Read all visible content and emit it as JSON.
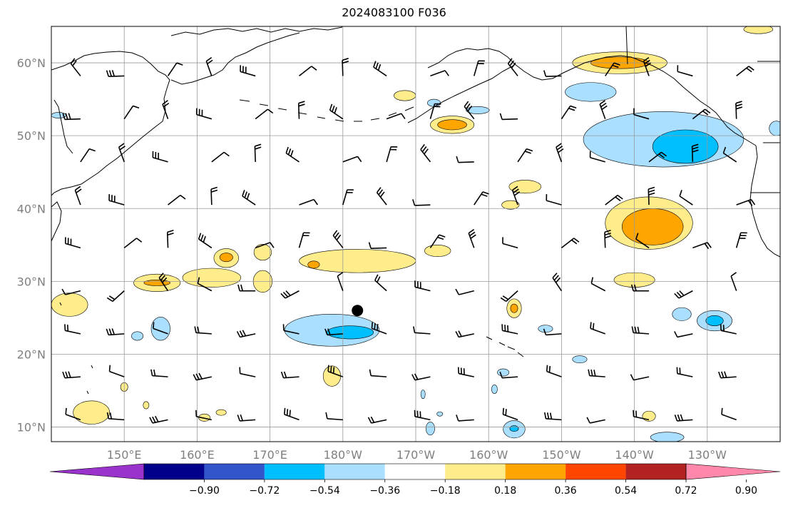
{
  "title": "2024083100 F036",
  "map": {
    "projection": "plate-carree",
    "lon_range_east": [
      140,
      240
    ],
    "lat_range": [
      8,
      65
    ],
    "gridlines": true,
    "lat_ticks": [
      {
        "value": 10,
        "label": "10°N"
      },
      {
        "value": 20,
        "label": "20°N"
      },
      {
        "value": 30,
        "label": "30°N"
      },
      {
        "value": 40,
        "label": "40°N"
      },
      {
        "value": 50,
        "label": "50°N"
      },
      {
        "value": 60,
        "label": "60°N"
      }
    ],
    "lon_ticks": [
      {
        "value": 150,
        "label": "150°E"
      },
      {
        "value": 160,
        "label": "160°E"
      },
      {
        "value": 170,
        "label": "170°E"
      },
      {
        "value": 180,
        "label": "180°W"
      },
      {
        "value": 190,
        "label": "170°W"
      },
      {
        "value": 200,
        "label": "160°W"
      },
      {
        "value": 210,
        "label": "150°W"
      },
      {
        "value": 220,
        "label": "140°W"
      },
      {
        "value": 230,
        "label": "130°W"
      }
    ],
    "marker": {
      "lon": 182,
      "lat": 26,
      "color": "#000000"
    }
  },
  "colorbar": {
    "colors": [
      "#9933cc",
      "#00008b",
      "#3355cc",
      "#00bfff",
      "#aadfff",
      "#ffffff",
      "#ffec8b",
      "#ffa500",
      "#ff4500",
      "#b22222",
      "#ff88aa"
    ],
    "labels": [
      "−0.90",
      "−0.72",
      "−0.54",
      "−0.36",
      "−0.18",
      "0.18",
      "0.36",
      "0.54",
      "0.72",
      "0.90"
    ],
    "extend": "both"
  },
  "colors": {
    "coast": "#000000",
    "grid": "#999999",
    "barb": "#000000",
    "pos1": "#ffec8b",
    "pos2": "#ffa500",
    "neg1": "#aadfff",
    "neg2": "#00bfff"
  },
  "contours": [
    {
      "level": "neg1",
      "cx": 224,
      "cy": 49.5,
      "rx": 11,
      "ry": 3.8
    },
    {
      "level": "neg2",
      "cx": 227,
      "cy": 48.5,
      "rx": 4.5,
      "ry": 2.3
    },
    {
      "level": "neg1",
      "cx": 214,
      "cy": 56,
      "rx": 3.5,
      "ry": 1.3
    },
    {
      "level": "pos1",
      "cx": 218,
      "cy": 60,
      "rx": 6.5,
      "ry": 1.5
    },
    {
      "level": "pos2",
      "cx": 218,
      "cy": 60,
      "rx": 4,
      "ry": 0.8
    },
    {
      "level": "pos1",
      "cx": 222,
      "cy": 38,
      "rx": 6,
      "ry": 3.6
    },
    {
      "level": "pos2",
      "cx": 222.5,
      "cy": 37.5,
      "rx": 4.2,
      "ry": 2.5
    },
    {
      "level": "pos1",
      "cx": 220,
      "cy": 30.2,
      "rx": 2.8,
      "ry": 1
    },
    {
      "level": "neg1",
      "cx": 231,
      "cy": 24.6,
      "rx": 2.4,
      "ry": 1.4
    },
    {
      "level": "neg2",
      "cx": 231,
      "cy": 24.6,
      "rx": 1.2,
      "ry": 0.7
    },
    {
      "level": "neg1",
      "cx": 226.5,
      "cy": 25.5,
      "rx": 1.3,
      "ry": 0.9
    },
    {
      "level": "pos1",
      "cx": 195,
      "cy": 51.5,
      "rx": 3,
      "ry": 1.2
    },
    {
      "level": "pos2",
      "cx": 195,
      "cy": 51.5,
      "rx": 2,
      "ry": 0.7
    },
    {
      "level": "pos1",
      "cx": 188.5,
      "cy": 55.5,
      "rx": 1.5,
      "ry": 0.7
    },
    {
      "level": "pos1",
      "cx": 205,
      "cy": 43,
      "rx": 2.2,
      "ry": 0.9
    },
    {
      "level": "pos1",
      "cx": 203,
      "cy": 40.5,
      "rx": 1.2,
      "ry": 0.6
    },
    {
      "level": "pos1",
      "cx": 182,
      "cy": 32.8,
      "rx": 8,
      "ry": 1.6
    },
    {
      "level": "pos2",
      "cx": 176,
      "cy": 32.3,
      "rx": 0.8,
      "ry": 0.5
    },
    {
      "level": "pos1",
      "cx": 169,
      "cy": 30,
      "rx": 1.3,
      "ry": 1.5
    },
    {
      "level": "pos1",
      "cx": 154.5,
      "cy": 29.8,
      "rx": 3.2,
      "ry": 1.2
    },
    {
      "level": "pos2",
      "cx": 154.5,
      "cy": 29.8,
      "rx": 1.8,
      "ry": 0.4
    },
    {
      "level": "pos1",
      "cx": 164,
      "cy": 33.2,
      "rx": 1.7,
      "ry": 1.3
    },
    {
      "level": "pos2",
      "cx": 164,
      "cy": 33.3,
      "rx": 0.9,
      "ry": 0.6
    },
    {
      "level": "pos1",
      "cx": 169,
      "cy": 34,
      "rx": 1.2,
      "ry": 1.1
    },
    {
      "level": "pos1",
      "cx": 162,
      "cy": 30.5,
      "rx": 4,
      "ry": 1.3
    },
    {
      "level": "pos1",
      "cx": 193,
      "cy": 34.2,
      "rx": 1.8,
      "ry": 0.8
    },
    {
      "level": "neg1",
      "cx": 178.5,
      "cy": 23.3,
      "rx": 6.5,
      "ry": 2.2
    },
    {
      "level": "neg2",
      "cx": 181,
      "cy": 23,
      "rx": 3.2,
      "ry": 0.9
    },
    {
      "level": "neg1",
      "cx": 155,
      "cy": 23.5,
      "rx": 1.3,
      "ry": 1.6
    },
    {
      "level": "neg1",
      "cx": 151.8,
      "cy": 22.5,
      "rx": 0.8,
      "ry": 0.6
    },
    {
      "level": "pos1",
      "cx": 203.5,
      "cy": 26.3,
      "rx": 1,
      "ry": 1.3
    },
    {
      "level": "pos2",
      "cx": 203.5,
      "cy": 26.3,
      "rx": 0.5,
      "ry": 0.6
    },
    {
      "level": "neg1",
      "cx": 207.8,
      "cy": 23.5,
      "rx": 1,
      "ry": 0.5
    },
    {
      "level": "neg1",
      "cx": 212.5,
      "cy": 19.3,
      "rx": 1,
      "ry": 0.5
    },
    {
      "level": "pos1",
      "cx": 178.5,
      "cy": 17,
      "rx": 1.2,
      "ry": 1.4
    },
    {
      "level": "pos1",
      "cx": 142.5,
      "cy": 26.8,
      "rx": 2.5,
      "ry": 1.6
    },
    {
      "level": "pos1",
      "cx": 145.5,
      "cy": 12,
      "rx": 2.5,
      "ry": 1.6
    },
    {
      "level": "pos1",
      "cx": 150,
      "cy": 15.5,
      "rx": 0.5,
      "ry": 0.6
    },
    {
      "level": "pos1",
      "cx": 153,
      "cy": 13,
      "rx": 0.4,
      "ry": 0.5
    },
    {
      "level": "pos1",
      "cx": 161,
      "cy": 11.3,
      "rx": 0.8,
      "ry": 0.5
    },
    {
      "level": "pos1",
      "cx": 163.3,
      "cy": 12,
      "rx": 0.7,
      "ry": 0.4
    },
    {
      "level": "neg1",
      "cx": 202,
      "cy": 17.5,
      "rx": 0.8,
      "ry": 0.5
    },
    {
      "level": "neg1",
      "cx": 200.8,
      "cy": 15.2,
      "rx": 0.4,
      "ry": 0.6
    },
    {
      "level": "neg1",
      "cx": 203.5,
      "cy": 9.7,
      "rx": 1.5,
      "ry": 1.2
    },
    {
      "level": "neg2",
      "cx": 203.5,
      "cy": 9.8,
      "rx": 0.6,
      "ry": 0.4
    },
    {
      "level": "neg1",
      "cx": 192,
      "cy": 9.8,
      "rx": 0.6,
      "ry": 0.9
    },
    {
      "level": "neg1",
      "cx": 191,
      "cy": 14.5,
      "rx": 0.3,
      "ry": 0.6
    },
    {
      "level": "neg1",
      "cx": 193.3,
      "cy": 11.8,
      "rx": 0.4,
      "ry": 0.3
    },
    {
      "level": "pos1",
      "cx": 222,
      "cy": 11.5,
      "rx": 0.9,
      "ry": 0.7
    },
    {
      "level": "neg1",
      "cx": 224.5,
      "cy": 8.6,
      "rx": 2.3,
      "ry": 0.7
    },
    {
      "level": "neg1",
      "cx": 141,
      "cy": 52.8,
      "rx": 1,
      "ry": 0.4
    },
    {
      "level": "pos1",
      "cx": 237,
      "cy": 64.6,
      "rx": 2,
      "ry": 0.6
    },
    {
      "level": "neg1",
      "cx": 192.5,
      "cy": 54.5,
      "rx": 0.9,
      "ry": 0.5
    },
    {
      "level": "neg1",
      "cx": 198.5,
      "cy": 53.5,
      "rx": 1.6,
      "ry": 0.5
    },
    {
      "level": "neg1",
      "cx": 239.5,
      "cy": 51,
      "rx": 1,
      "ry": 1
    }
  ]
}
